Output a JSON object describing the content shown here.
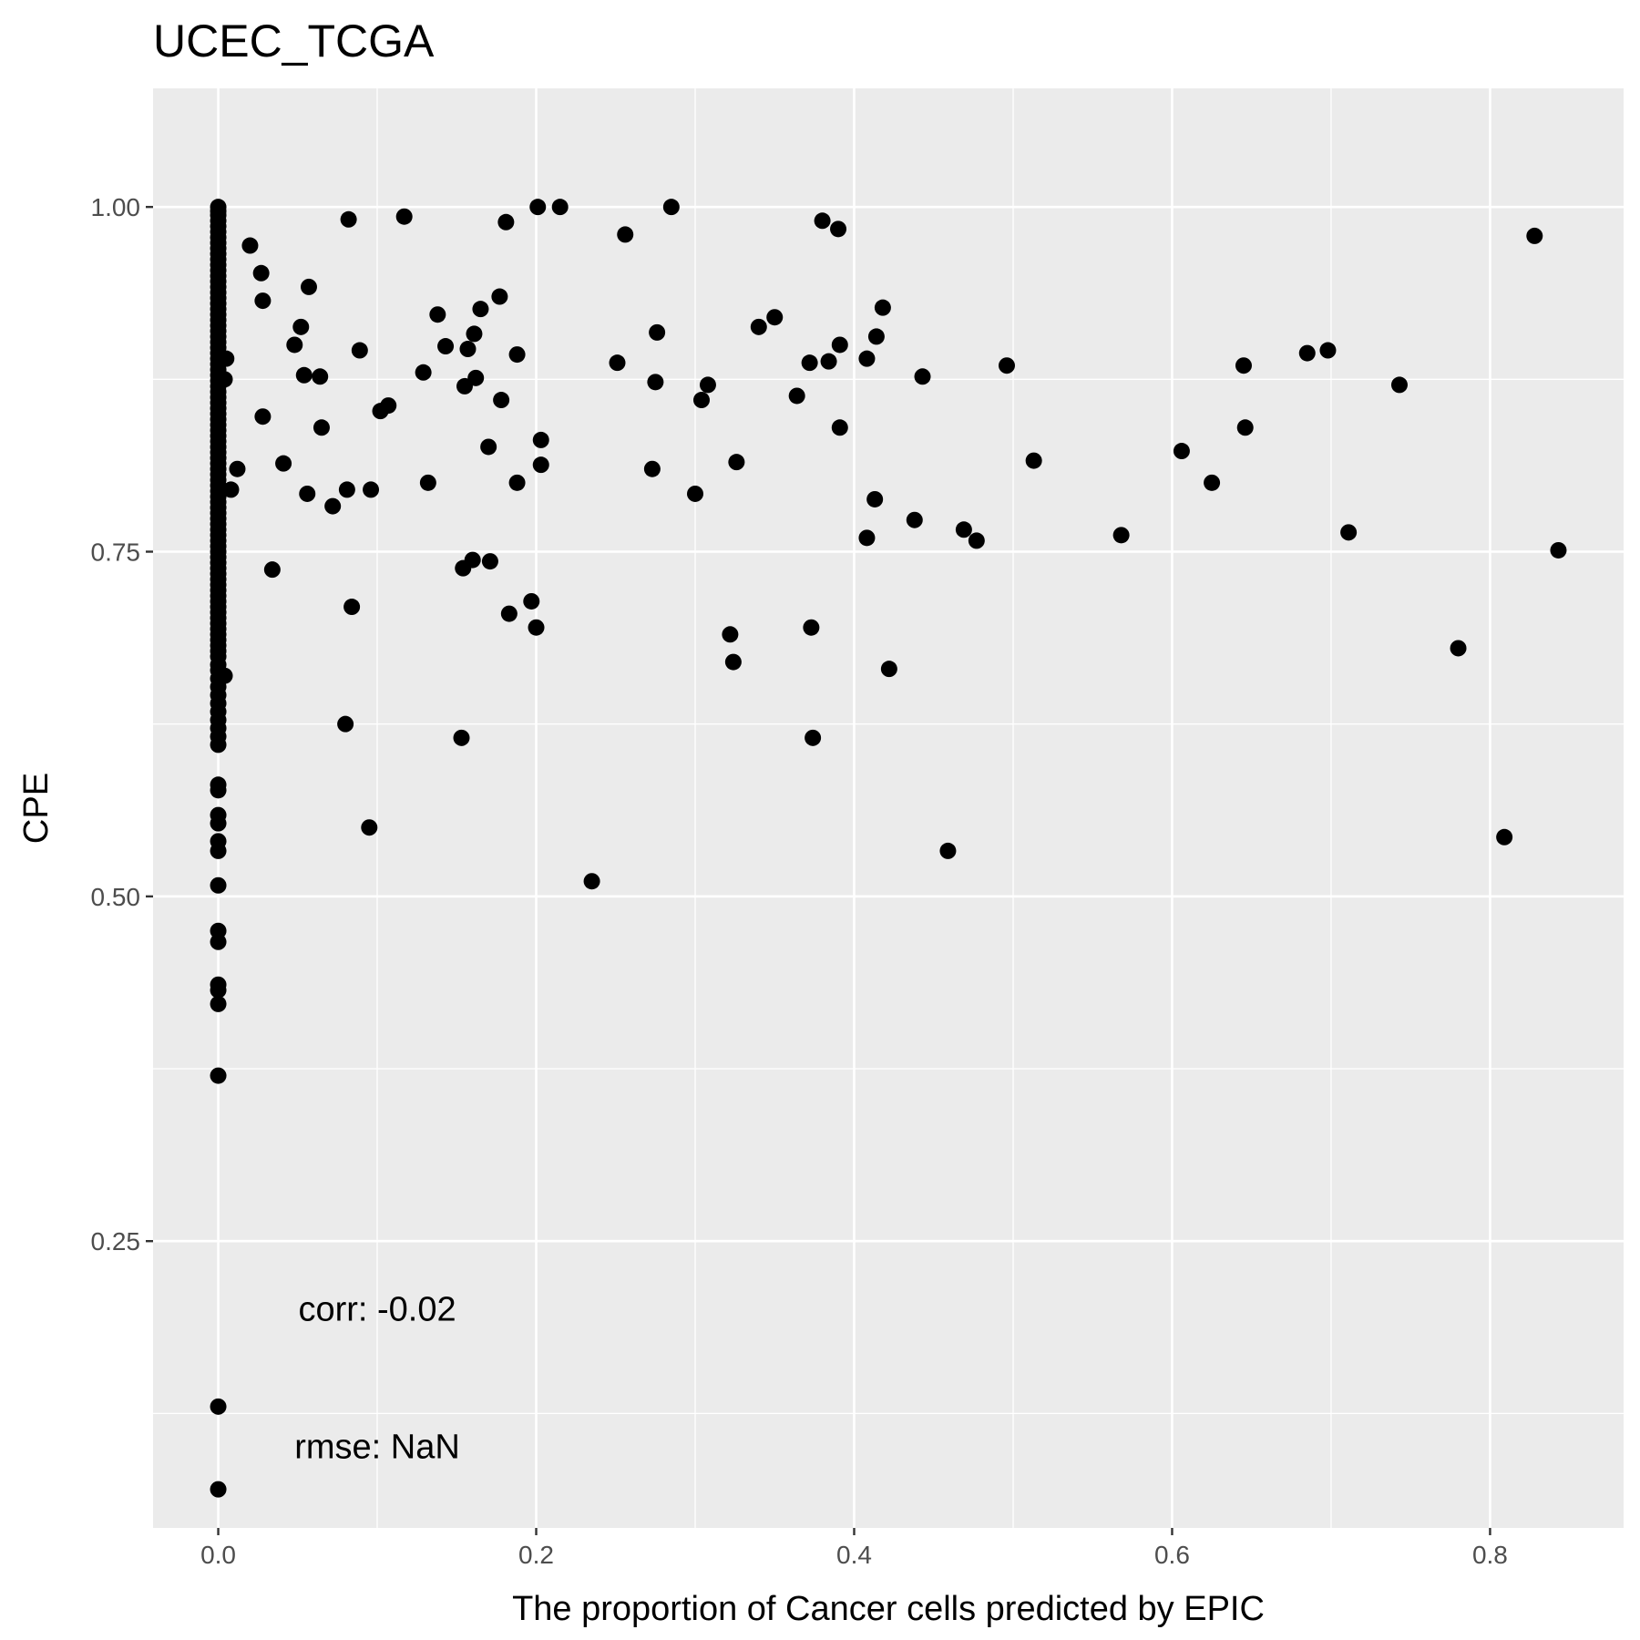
{
  "chart_data": {
    "type": "scatter",
    "title": "UCEC_TCGA",
    "xlabel": "The proportion of Cancer cells predicted by EPIC",
    "ylabel": "CPE",
    "xlim": [
      -0.041,
      0.884
    ],
    "ylim": [
      0.042,
      1.086
    ],
    "x_ticks": [
      {
        "value": 0.0,
        "label": "0.0"
      },
      {
        "value": 0.2,
        "label": "0.2"
      },
      {
        "value": 0.4,
        "label": "0.4"
      },
      {
        "value": 0.6,
        "label": "0.6"
      },
      {
        "value": 0.8,
        "label": "0.8"
      }
    ],
    "y_ticks": [
      {
        "value": 0.25,
        "label": "0.25"
      },
      {
        "value": 0.5,
        "label": "0.50"
      },
      {
        "value": 0.75,
        "label": "0.75"
      },
      {
        "value": 1.0,
        "label": "1.00"
      }
    ],
    "x_minor": [
      0.1,
      0.3,
      0.5,
      0.7
    ],
    "y_minor": [
      0.125,
      0.375,
      0.625,
      0.875
    ],
    "grid": true,
    "annotations": [
      {
        "text": "corr: -0.02",
        "x": 0.1,
        "y": 0.201
      },
      {
        "text": "rmse: NaN",
        "x": 0.1,
        "y": 0.101
      }
    ],
    "points": {
      "x_zero_y": [
        1.0,
        0.997,
        0.994,
        0.99,
        0.986,
        0.982,
        0.978,
        0.974,
        0.97,
        0.966,
        0.962,
        0.958,
        0.954,
        0.95,
        0.946,
        0.942,
        0.938,
        0.934,
        0.93,
        0.926,
        0.922,
        0.918,
        0.914,
        0.91,
        0.906,
        0.902,
        0.898,
        0.894,
        0.89,
        0.886,
        0.882,
        0.878,
        0.874,
        0.87,
        0.866,
        0.862,
        0.858,
        0.854,
        0.85,
        0.846,
        0.842,
        0.838,
        0.834,
        0.83,
        0.826,
        0.822,
        0.818,
        0.814,
        0.81,
        0.806,
        0.802,
        0.798,
        0.794,
        0.79,
        0.786,
        0.782,
        0.778,
        0.774,
        0.77,
        0.766,
        0.762,
        0.758,
        0.754,
        0.75,
        0.746,
        0.742,
        0.738,
        0.734,
        0.73,
        0.726,
        0.722,
        0.718,
        0.714,
        0.71,
        0.706,
        0.702,
        0.698,
        0.694,
        0.69,
        0.686,
        0.682,
        0.678,
        0.674,
        0.668,
        0.664,
        0.658,
        0.652,
        0.646,
        0.64,
        0.634,
        0.628,
        0.622,
        0.616,
        0.61,
        0.581,
        0.577,
        0.559,
        0.553,
        0.54,
        0.533,
        0.508,
        0.475,
        0.467,
        0.436,
        0.432,
        0.422,
        0.37,
        0.13,
        0.07
      ],
      "xy": [
        [
          0.005,
          0.89
        ],
        [
          0.004,
          0.875
        ],
        [
          0.004,
          0.66
        ],
        [
          0.008,
          0.795
        ],
        [
          0.012,
          0.81
        ],
        [
          0.02,
          0.972
        ],
        [
          0.027,
          0.952
        ],
        [
          0.028,
          0.932
        ],
        [
          0.028,
          0.848
        ],
        [
          0.034,
          0.737
        ],
        [
          0.041,
          0.814
        ],
        [
          0.048,
          0.9
        ],
        [
          0.052,
          0.913
        ],
        [
          0.054,
          0.878
        ],
        [
          0.056,
          0.792
        ],
        [
          0.057,
          0.942
        ],
        [
          0.064,
          0.877
        ],
        [
          0.065,
          0.84
        ],
        [
          0.072,
          0.783
        ],
        [
          0.081,
          0.795
        ],
        [
          0.082,
          0.991
        ],
        [
          0.08,
          0.625
        ],
        [
          0.084,
          0.71
        ],
        [
          0.089,
          0.896
        ],
        [
          0.095,
          0.55
        ],
        [
          0.096,
          0.795
        ],
        [
          0.102,
          0.852
        ],
        [
          0.107,
          0.856
        ],
        [
          0.117,
          0.993
        ],
        [
          0.129,
          0.88
        ],
        [
          0.132,
          0.8
        ],
        [
          0.138,
          0.922
        ],
        [
          0.143,
          0.899
        ],
        [
          0.153,
          0.615
        ],
        [
          0.154,
          0.738
        ],
        [
          0.155,
          0.87
        ],
        [
          0.157,
          0.897
        ],
        [
          0.16,
          0.744
        ],
        [
          0.161,
          0.908
        ],
        [
          0.162,
          0.876
        ],
        [
          0.165,
          0.926
        ],
        [
          0.17,
          0.826
        ],
        [
          0.171,
          0.743
        ],
        [
          0.177,
          0.935
        ],
        [
          0.178,
          0.86
        ],
        [
          0.181,
          0.989
        ],
        [
          0.183,
          0.705
        ],
        [
          0.188,
          0.8
        ],
        [
          0.188,
          0.893
        ],
        [
          0.197,
          0.714
        ],
        [
          0.2,
          0.695
        ],
        [
          0.201,
          1.0
        ],
        [
          0.203,
          0.813
        ],
        [
          0.203,
          0.831
        ],
        [
          0.215,
          1.0
        ],
        [
          0.235,
          0.511
        ],
        [
          0.251,
          0.887
        ],
        [
          0.256,
          0.98
        ],
        [
          0.273,
          0.81
        ],
        [
          0.275,
          0.873
        ],
        [
          0.276,
          0.909
        ],
        [
          0.285,
          1.0
        ],
        [
          0.3,
          0.792
        ],
        [
          0.304,
          0.86
        ],
        [
          0.308,
          0.871
        ],
        [
          0.322,
          0.69
        ],
        [
          0.324,
          0.67
        ],
        [
          0.326,
          0.815
        ],
        [
          0.34,
          0.913
        ],
        [
          0.35,
          0.92
        ],
        [
          0.364,
          0.863
        ],
        [
          0.372,
          0.887
        ],
        [
          0.373,
          0.695
        ],
        [
          0.374,
          0.615
        ],
        [
          0.38,
          0.99
        ],
        [
          0.384,
          0.888
        ],
        [
          0.39,
          0.984
        ],
        [
          0.391,
          0.9
        ],
        [
          0.391,
          0.84
        ],
        [
          0.408,
          0.89
        ],
        [
          0.408,
          0.76
        ],
        [
          0.413,
          0.788
        ],
        [
          0.414,
          0.906
        ],
        [
          0.418,
          0.927
        ],
        [
          0.422,
          0.665
        ],
        [
          0.438,
          0.773
        ],
        [
          0.443,
          0.877
        ],
        [
          0.459,
          0.533
        ],
        [
          0.469,
          0.766
        ],
        [
          0.477,
          0.758
        ],
        [
          0.496,
          0.885
        ],
        [
          0.513,
          0.816
        ],
        [
          0.568,
          0.762
        ],
        [
          0.606,
          0.823
        ],
        [
          0.625,
          0.8
        ],
        [
          0.645,
          0.885
        ],
        [
          0.646,
          0.84
        ],
        [
          0.685,
          0.894
        ],
        [
          0.698,
          0.896
        ],
        [
          0.711,
          0.764
        ],
        [
          0.743,
          0.871
        ],
        [
          0.78,
          0.68
        ],
        [
          0.809,
          0.543
        ],
        [
          0.828,
          0.979
        ],
        [
          0.843,
          0.751
        ]
      ]
    }
  }
}
